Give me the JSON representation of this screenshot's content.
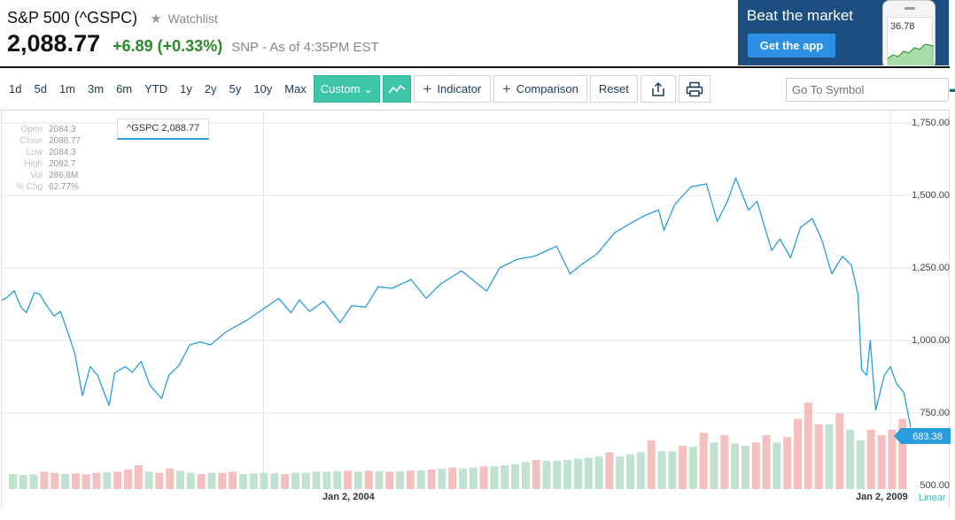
{
  "header": {
    "title": "S&P 500 (^GSPC)",
    "watchlist_label": "Watchlist",
    "star_icon": "star-icon",
    "price": "2,088.77",
    "change": "+6.89 (+0.33%)",
    "source": "SNP - As of 4:35PM EST"
  },
  "ad": {
    "headline": "Beat the market",
    "button_label": "Get the app",
    "phone_value": "36.78"
  },
  "toolbar": {
    "ranges": [
      "1d",
      "5d",
      "1m",
      "3m",
      "6m",
      "YTD",
      "1y",
      "2y",
      "5y",
      "10y",
      "Max"
    ],
    "custom_label": "Custom ⌄",
    "indicator_label": "Indicator",
    "comparison_label": "Comparison",
    "reset_label": "Reset",
    "share_icon": "share-icon",
    "print_icon": "print-icon"
  },
  "search": {
    "placeholder": "Go To Symbol",
    "go_icon": "arrow-right-icon"
  },
  "ohlc": [
    {
      "label": "Open",
      "value": "2084.3"
    },
    {
      "label": "Close",
      "value": "2088.77"
    },
    {
      "label": "Low",
      "value": "2084.3"
    },
    {
      "label": "High",
      "value": "2092.7"
    },
    {
      "label": "Vol",
      "value": "286.8M"
    },
    {
      "label": "% Chg",
      "value": "62.77%"
    }
  ],
  "tooltip": "^GSPC 2,088.77",
  "scale_label": "Linear",
  "last_value": "683.38",
  "colors": {
    "line": "#2a9ddf",
    "accent": "#3cc5a6",
    "up_volume": "#b6ddc8",
    "down_volume": "#f2b4b4"
  },
  "chart_data": {
    "type": "line",
    "series": [
      {
        "name": "^GSPC",
        "x": [
          "2001-11-30",
          "2001-12-15",
          "2002-01-05",
          "2002-01-25",
          "2002-02-10",
          "2002-03-05",
          "2002-03-20",
          "2002-04-10",
          "2002-05-01",
          "2002-05-20",
          "2002-06-10",
          "2002-07-01",
          "2002-07-23",
          "2002-08-15",
          "2002-09-05",
          "2002-10-09",
          "2002-10-25",
          "2002-11-25",
          "2002-12-15",
          "2003-01-10",
          "2003-02-05",
          "2003-03-11",
          "2003-04-01",
          "2003-05-01",
          "2003-06-01",
          "2003-07-01",
          "2003-08-01",
          "2003-09-15",
          "2003-10-15",
          "2003-11-15",
          "2004-01-02",
          "2004-02-15",
          "2004-03-22",
          "2004-04-15",
          "2004-05-15",
          "2004-06-25",
          "2004-08-12",
          "2004-09-15",
          "2004-10-25",
          "2004-12-01",
          "2005-01-10",
          "2005-03-07",
          "2005-04-20",
          "2005-06-01",
          "2005-08-01",
          "2005-10-13",
          "2005-11-20",
          "2006-01-10",
          "2006-03-01",
          "2006-05-05",
          "2006-06-13",
          "2006-07-15",
          "2006-09-01",
          "2006-10-20",
          "2006-12-01",
          "2007-01-15",
          "2007-02-26",
          "2007-03-14",
          "2007-04-15",
          "2007-06-01",
          "2007-07-16",
          "2007-08-16",
          "2007-09-15",
          "2007-10-09",
          "2007-11-15",
          "2007-12-10",
          "2008-01-22",
          "2008-02-15",
          "2008-03-17",
          "2008-04-15",
          "2008-05-19",
          "2008-06-15",
          "2008-07-15",
          "2008-08-15",
          "2008-09-10",
          "2008-09-29",
          "2008-10-10",
          "2008-10-25",
          "2008-11-04",
          "2008-11-20",
          "2008-12-15",
          "2009-01-02",
          "2009-01-20",
          "2009-01-28",
          "2009-02-10",
          "2009-03-02"
        ],
        "values": [
          1139,
          1148,
          1172,
          1115,
          1096,
          1165,
          1160,
          1120,
          1084,
          1100,
          1030,
          955,
          810,
          910,
          880,
          776,
          888,
          910,
          890,
          928,
          845,
          800,
          880,
          915,
          985,
          995,
          985,
          1030,
          1050,
          1070,
          1109,
          1145,
          1095,
          1140,
          1100,
          1135,
          1062,
          1120,
          1115,
          1185,
          1180,
          1210,
          1145,
          1195,
          1240,
          1170,
          1250,
          1280,
          1290,
          1325,
          1230,
          1260,
          1300,
          1370,
          1400,
          1430,
          1450,
          1380,
          1470,
          1530,
          1540,
          1410,
          1480,
          1560,
          1450,
          1480,
          1310,
          1350,
          1285,
          1390,
          1420,
          1350,
          1230,
          1290,
          1260,
          1160,
          900,
          880,
          1000,
          760,
          880,
          910,
          850,
          840,
          820,
          700
        ]
      }
    ],
    "xlabel": "",
    "ylabel": "",
    "x_ticks": [
      "Jan 2, 2004",
      "Jan 2, 2009"
    ],
    "y_ticks": [
      "1,750.00",
      "1,500.00",
      "1,250.00",
      "1,000.00",
      "750.00",
      "500.00"
    ],
    "ylim": [
      500,
      1750
    ],
    "grid": true,
    "volume": {
      "description_none": "",
      "values_millions": [
        1400,
        1300,
        1350,
        1600,
        1500,
        1400,
        1450,
        1350,
        1500,
        1550,
        1600,
        1800,
        2200,
        1600,
        1500,
        1900,
        1700,
        1500,
        1400,
        1500,
        1500,
        1600,
        1400,
        1450,
        1500,
        1450,
        1400,
        1500,
        1500,
        1600,
        1600,
        1650,
        1700,
        1600,
        1700,
        1650,
        1600,
        1650,
        1700,
        1750,
        1800,
        1900,
        2000,
        1900,
        2000,
        2100,
        2100,
        2200,
        2300,
        2500,
        2700,
        2600,
        2600,
        2700,
        2800,
        2900,
        3000,
        3400,
        3000,
        3200,
        3400,
        4500,
        3500,
        3500,
        4000,
        3900,
        5200,
        4300,
        5000,
        4200,
        4000,
        4300,
        5000,
        4300,
        4800,
        6500,
        8000,
        6000,
        6000,
        7000,
        5500,
        4500,
        5500,
        5000,
        5500,
        6500
      ]
    }
  }
}
